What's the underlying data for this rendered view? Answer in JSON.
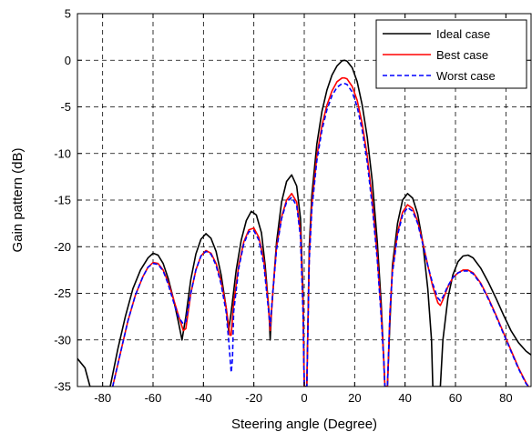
{
  "chart_data": {
    "type": "line",
    "title": "",
    "xlabel": "Steering angle (Degree)",
    "ylabel": "Gain pattern (dB)",
    "xlim": [
      -90,
      90
    ],
    "ylim": [
      -35,
      5
    ],
    "xticks": [
      -80,
      -60,
      -40,
      -20,
      0,
      20,
      40,
      60,
      80
    ],
    "yticks": [
      5,
      0,
      -5,
      -10,
      -15,
      -20,
      -25,
      -30,
      -35
    ],
    "grid": true,
    "legend_position": "top-right",
    "series": [
      {
        "name": "Ideal case",
        "color": "#000000",
        "style": "solid",
        "points": [
          [
            -90,
            -32
          ],
          [
            -87,
            -33
          ],
          [
            -85,
            -35
          ],
          [
            -82,
            -35
          ],
          [
            -77,
            -35
          ],
          [
            -74,
            -31
          ],
          [
            -71,
            -27.5
          ],
          [
            -68,
            -24.5
          ],
          [
            -65,
            -22.5
          ],
          [
            -62,
            -21.2
          ],
          [
            -60,
            -20.7
          ],
          [
            -58,
            -20.9
          ],
          [
            -56,
            -21.8
          ],
          [
            -54,
            -23.4
          ],
          [
            -52,
            -25.5
          ],
          [
            -50,
            -28
          ],
          [
            -48.5,
            -30
          ],
          [
            -47,
            -27.5
          ],
          [
            -45,
            -23.5
          ],
          [
            -43,
            -20.8
          ],
          [
            -41,
            -19.2
          ],
          [
            -39,
            -18.6
          ],
          [
            -37,
            -19.1
          ],
          [
            -35,
            -20.5
          ],
          [
            -33,
            -23
          ],
          [
            -31,
            -26.5
          ],
          [
            -30,
            -29
          ],
          [
            -29,
            -27
          ],
          [
            -27,
            -22.5
          ],
          [
            -25,
            -19.3
          ],
          [
            -23,
            -17.2
          ],
          [
            -21,
            -16.2
          ],
          [
            -19,
            -16.6
          ],
          [
            -17,
            -18.5
          ],
          [
            -15.5,
            -22
          ],
          [
            -14,
            -27
          ],
          [
            -13.5,
            -30
          ],
          [
            -13,
            -27
          ],
          [
            -11,
            -19.5
          ],
          [
            -9,
            -15.2
          ],
          [
            -7,
            -13
          ],
          [
            -5,
            -12.3
          ],
          [
            -3,
            -13.5
          ],
          [
            -1.5,
            -17
          ],
          [
            -0.5,
            -25
          ],
          [
            0,
            -35
          ],
          [
            1,
            -35
          ],
          [
            2,
            -20
          ],
          [
            3,
            -14.5
          ],
          [
            5,
            -9
          ],
          [
            7,
            -5.5
          ],
          [
            9,
            -3.2
          ],
          [
            11,
            -1.6
          ],
          [
            13,
            -0.6
          ],
          [
            15,
            -0.05
          ],
          [
            16,
            0
          ],
          [
            17,
            -0.1
          ],
          [
            19,
            -0.8
          ],
          [
            21,
            -2.3
          ],
          [
            23,
            -4.8
          ],
          [
            25,
            -8.3
          ],
          [
            27,
            -13
          ],
          [
            29,
            -19.5
          ],
          [
            30.5,
            -26
          ],
          [
            31.5,
            -32
          ],
          [
            32,
            -35
          ],
          [
            33,
            -35
          ],
          [
            34,
            -28
          ],
          [
            35,
            -22
          ],
          [
            37,
            -17.5
          ],
          [
            39,
            -15
          ],
          [
            41,
            -14.3
          ],
          [
            43,
            -14.8
          ],
          [
            45,
            -16.5
          ],
          [
            47,
            -19.5
          ],
          [
            49,
            -24.5
          ],
          [
            50.5,
            -30
          ],
          [
            51,
            -35
          ],
          [
            54,
            -35
          ],
          [
            55,
            -30
          ],
          [
            57,
            -25.5
          ],
          [
            59,
            -23
          ],
          [
            61,
            -21.6
          ],
          [
            63,
            -21
          ],
          [
            65,
            -20.9
          ],
          [
            67,
            -21.2
          ],
          [
            70,
            -22.3
          ],
          [
            73,
            -23.8
          ],
          [
            76,
            -25.5
          ],
          [
            79,
            -27.3
          ],
          [
            82,
            -29
          ],
          [
            85,
            -30.3
          ],
          [
            88,
            -31.2
          ],
          [
            90,
            -31.6
          ]
        ]
      },
      {
        "name": "Best case",
        "color": "#ff0000",
        "style": "solid",
        "points": [
          [
            -76,
            -35
          ],
          [
            -73,
            -31.5
          ],
          [
            -70,
            -28
          ],
          [
            -67,
            -25.2
          ],
          [
            -64,
            -23.2
          ],
          [
            -62,
            -22.2
          ],
          [
            -60,
            -21.7
          ],
          [
            -58,
            -21.8
          ],
          [
            -56,
            -22.5
          ],
          [
            -54,
            -23.8
          ],
          [
            -52,
            -25.5
          ],
          [
            -50,
            -27.3
          ],
          [
            -48,
            -29
          ],
          [
            -47,
            -28.8
          ],
          [
            -45,
            -25
          ],
          [
            -43,
            -22.5
          ],
          [
            -41,
            -21
          ],
          [
            -39,
            -20.4
          ],
          [
            -37,
            -20.7
          ],
          [
            -35,
            -21.8
          ],
          [
            -33,
            -23.7
          ],
          [
            -31,
            -26.5
          ],
          [
            -29.5,
            -29.5
          ],
          [
            -29,
            -29.5
          ],
          [
            -28,
            -26
          ],
          [
            -26,
            -22
          ],
          [
            -24,
            -19.5
          ],
          [
            -22,
            -18.2
          ],
          [
            -20,
            -18
          ],
          [
            -18,
            -19
          ],
          [
            -16,
            -21.5
          ],
          [
            -14.5,
            -25.5
          ],
          [
            -13.5,
            -29
          ],
          [
            -12.5,
            -25
          ],
          [
            -11,
            -20
          ],
          [
            -9,
            -16.8
          ],
          [
            -7,
            -15
          ],
          [
            -5,
            -14.3
          ],
          [
            -3,
            -15.2
          ],
          [
            -1.5,
            -18.5
          ],
          [
            -0.5,
            -26
          ],
          [
            0,
            -35
          ],
          [
            1,
            -35
          ],
          [
            2,
            -21
          ],
          [
            3,
            -15.5
          ],
          [
            5,
            -10.3
          ],
          [
            7,
            -7
          ],
          [
            9,
            -4.8
          ],
          [
            11,
            -3.3
          ],
          [
            13,
            -2.3
          ],
          [
            15,
            -1.9
          ],
          [
            16,
            -1.9
          ],
          [
            17,
            -2
          ],
          [
            19,
            -2.8
          ],
          [
            21,
            -4.3
          ],
          [
            23,
            -6.8
          ],
          [
            25,
            -10.3
          ],
          [
            27,
            -15
          ],
          [
            29,
            -21
          ],
          [
            30.5,
            -27
          ],
          [
            31.5,
            -32
          ],
          [
            32,
            -35
          ],
          [
            33,
            -35
          ],
          [
            34,
            -27
          ],
          [
            35,
            -22.5
          ],
          [
            37,
            -18.5
          ],
          [
            39,
            -16.3
          ],
          [
            41,
            -15.5
          ],
          [
            43,
            -15.9
          ],
          [
            45,
            -17.3
          ],
          [
            47,
            -19.5
          ],
          [
            49,
            -22
          ],
          [
            51,
            -24.3
          ],
          [
            53,
            -26
          ],
          [
            54,
            -26.3
          ],
          [
            55,
            -25.7
          ],
          [
            57,
            -24.3
          ],
          [
            59,
            -23.3
          ],
          [
            61,
            -22.8
          ],
          [
            63,
            -22.5
          ],
          [
            65,
            -22.5
          ],
          [
            67,
            -22.8
          ],
          [
            70,
            -23.9
          ],
          [
            73,
            -25.5
          ],
          [
            76,
            -27.3
          ],
          [
            79,
            -29.2
          ],
          [
            82,
            -31.1
          ],
          [
            85,
            -33
          ],
          [
            88,
            -34.6
          ],
          [
            89,
            -35
          ]
        ]
      },
      {
        "name": "Worst case",
        "color": "#0000ff",
        "style": "dashed",
        "points": [
          [
            -76,
            -35
          ],
          [
            -73,
            -31.5
          ],
          [
            -70,
            -28
          ],
          [
            -67,
            -25.2
          ],
          [
            -64,
            -23.2
          ],
          [
            -62,
            -22.2
          ],
          [
            -60,
            -21.8
          ],
          [
            -58,
            -21.9
          ],
          [
            -56,
            -22.6
          ],
          [
            -54,
            -24
          ],
          [
            -52,
            -25.8
          ],
          [
            -50,
            -27.5
          ],
          [
            -48,
            -28.3
          ],
          [
            -47,
            -28
          ],
          [
            -45,
            -25
          ],
          [
            -43,
            -22.5
          ],
          [
            -41,
            -21
          ],
          [
            -39,
            -20.5
          ],
          [
            -37,
            -20.8
          ],
          [
            -35,
            -22
          ],
          [
            -33,
            -24
          ],
          [
            -31,
            -27
          ],
          [
            -30,
            -30
          ],
          [
            -29,
            -33.5
          ],
          [
            -28.5,
            -32
          ],
          [
            -28,
            -27
          ],
          [
            -26,
            -22.3
          ],
          [
            -24,
            -19.7
          ],
          [
            -22,
            -18.4
          ],
          [
            -20,
            -18.3
          ],
          [
            -18,
            -19.3
          ],
          [
            -16,
            -22
          ],
          [
            -14.5,
            -26
          ],
          [
            -13.5,
            -28.5
          ],
          [
            -12.5,
            -25
          ],
          [
            -11,
            -20.3
          ],
          [
            -9,
            -17
          ],
          [
            -7,
            -15.2
          ],
          [
            -5,
            -14.7
          ],
          [
            -3,
            -15.6
          ],
          [
            -1.5,
            -19
          ],
          [
            -0.5,
            -27
          ],
          [
            0,
            -35
          ],
          [
            1,
            -35
          ],
          [
            2,
            -21.5
          ],
          [
            3,
            -16
          ],
          [
            5,
            -10.8
          ],
          [
            7,
            -7.5
          ],
          [
            9,
            -5.3
          ],
          [
            11,
            -3.8
          ],
          [
            13,
            -2.9
          ],
          [
            15,
            -2.5
          ],
          [
            16,
            -2.5
          ],
          [
            17,
            -2.6
          ],
          [
            19,
            -3.4
          ],
          [
            21,
            -5
          ],
          [
            23,
            -7.5
          ],
          [
            25,
            -11
          ],
          [
            27,
            -15.7
          ],
          [
            29,
            -21.5
          ],
          [
            30.5,
            -27.5
          ],
          [
            31.5,
            -32
          ],
          [
            32,
            -35
          ],
          [
            33,
            -35
          ],
          [
            34,
            -27
          ],
          [
            35,
            -22.8
          ],
          [
            37,
            -18.8
          ],
          [
            39,
            -16.6
          ],
          [
            41,
            -15.8
          ],
          [
            43,
            -16.2
          ],
          [
            45,
            -17.5
          ],
          [
            47,
            -19.7
          ],
          [
            49,
            -22
          ],
          [
            51,
            -24
          ],
          [
            53,
            -25.5
          ],
          [
            54,
            -25.8
          ],
          [
            55,
            -25.4
          ],
          [
            57,
            -24.2
          ],
          [
            59,
            -23.3
          ],
          [
            61,
            -22.8
          ],
          [
            63,
            -22.6
          ],
          [
            65,
            -22.6
          ],
          [
            67,
            -22.9
          ],
          [
            70,
            -24
          ],
          [
            73,
            -25.6
          ],
          [
            76,
            -27.4
          ],
          [
            79,
            -29.3
          ],
          [
            82,
            -31.2
          ],
          [
            85,
            -33.1
          ],
          [
            88,
            -34.7
          ],
          [
            89,
            -35
          ]
        ]
      }
    ]
  }
}
